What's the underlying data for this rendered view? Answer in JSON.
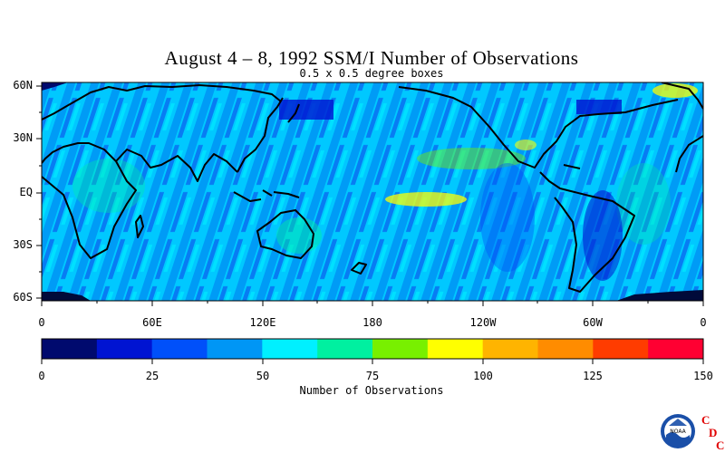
{
  "title": "August 4 – 8, 1992 SSM/I Number of Observations",
  "subtitle": "0.5 x 0.5 degree boxes",
  "lat_labels": [
    "60N",
    "30N",
    "EQ",
    "30S",
    "60S"
  ],
  "lon_labels": [
    "0",
    "60E",
    "120E",
    "180",
    "120W",
    "60W",
    "0"
  ],
  "colorbar": {
    "title": "Number of Observations",
    "ticks": [
      "0",
      "25",
      "50",
      "75",
      "100",
      "125",
      "150"
    ],
    "min": 0,
    "max": 150,
    "colors": [
      "#000a6e",
      "#0014d2",
      "#0050fa",
      "#0096f5",
      "#00f0ff",
      "#00f0a0",
      "#78f000",
      "#ffff00",
      "#ffb400",
      "#ff8c00",
      "#ff3c00",
      "#ff0032"
    ]
  },
  "logo": {
    "agency": "NOAA",
    "letters": [
      "C",
      "D",
      "C"
    ]
  }
}
